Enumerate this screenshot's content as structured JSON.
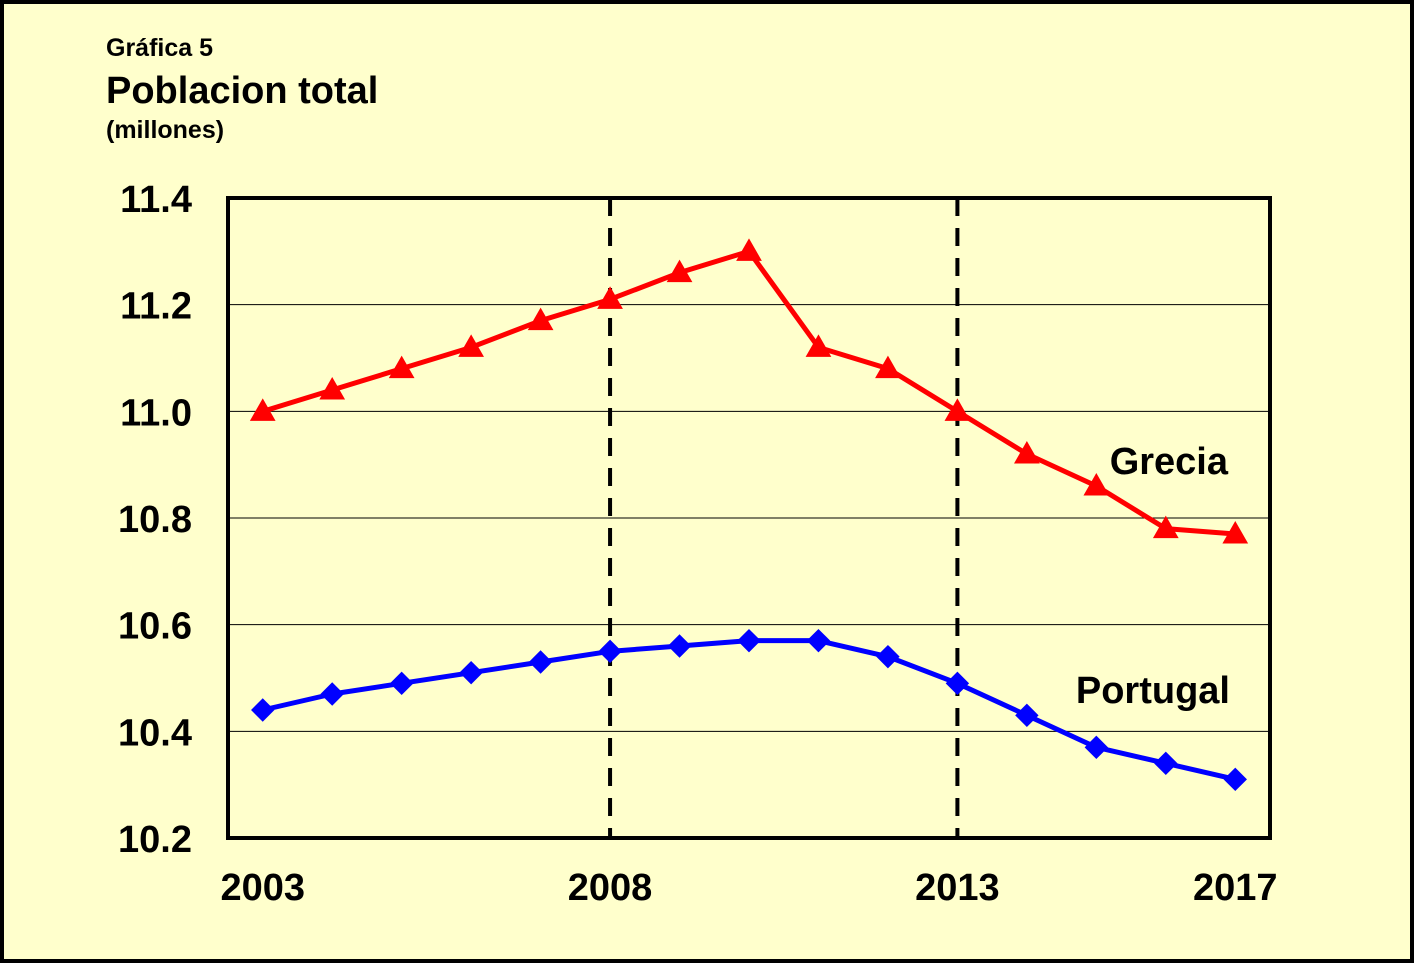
{
  "header": {
    "chart_number": "Gráfica 5",
    "title": "Poblacion total",
    "unit": "(millones)"
  },
  "chart_data": {
    "type": "line",
    "title": "Poblacion total",
    "subtitle": "(millones)",
    "xlabel": "",
    "ylabel": "",
    "x": [
      2003,
      2004,
      2005,
      2006,
      2007,
      2008,
      2009,
      2010,
      2011,
      2012,
      2013,
      2014,
      2015,
      2016,
      2017
    ],
    "x_tick_labels": [
      "2003",
      "2008",
      "2013",
      "2017"
    ],
    "x_tick_values": [
      2003,
      2008,
      2013,
      2017
    ],
    "y_tick_labels": [
      "11.4",
      "11.2",
      "11.0",
      "10.8",
      "10.6",
      "10.4",
      "10.2"
    ],
    "y_tick_values": [
      11.4,
      11.2,
      11.0,
      10.8,
      10.6,
      10.4,
      10.2
    ],
    "xlim": [
      2002.5,
      2017.5
    ],
    "ylim": [
      10.2,
      11.4
    ],
    "grid": "horizontal",
    "vertical_reference_lines": [
      2008,
      2013
    ],
    "background_color": "#ffffcc",
    "series": [
      {
        "name": "Grecia",
        "color": "#ff0000",
        "marker": "triangle",
        "values": [
          11.0,
          11.04,
          11.08,
          11.12,
          11.17,
          11.21,
          11.26,
          11.3,
          11.12,
          11.08,
          11.0,
          10.92,
          10.86,
          10.78,
          10.77
        ]
      },
      {
        "name": "Portugal",
        "color": "#0000ff",
        "marker": "diamond",
        "values": [
          10.44,
          10.47,
          10.49,
          10.51,
          10.53,
          10.55,
          10.56,
          10.57,
          10.57,
          10.54,
          10.49,
          10.43,
          10.37,
          10.34,
          10.31
        ]
      }
    ]
  }
}
